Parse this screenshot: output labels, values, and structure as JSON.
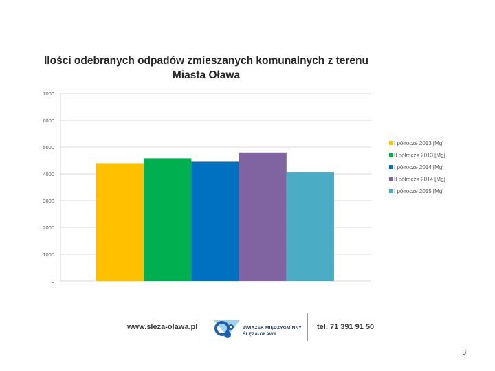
{
  "chart_data": {
    "type": "bar",
    "title": "Ilości odebranych odpadów zmieszanych komunalnych z terenu Miasta Oława",
    "title_line1": "Ilości odebranych odpadów zmieszanych komunalnych z terenu",
    "title_line2": "Miasta Oława",
    "ylim": [
      0,
      7000
    ],
    "yticks": [
      0,
      1000,
      2000,
      3000,
      4000,
      5000,
      6000,
      7000
    ],
    "grid": true,
    "legend_position": "right",
    "series": [
      {
        "name": "I półrocze 2013 [Mg]",
        "value": 4400,
        "color": "#FFC000"
      },
      {
        "name": "II półrocze 2013 [Mg]",
        "value": 4580,
        "color": "#00B050"
      },
      {
        "name": "I półrocze 2014 [Mg]",
        "value": 4450,
        "color": "#0070C0"
      },
      {
        "name": "II półrocze 2014 [Mg]",
        "value": 4800,
        "color": "#8064A2"
      },
      {
        "name": "I półrocze 2015 [Mg]",
        "value": 4060,
        "color": "#4BACC6"
      }
    ]
  },
  "footer": {
    "website": "www.sleza-olawa.pl",
    "org_line1": "ZWIĄZEK MIĘDZYGMINNY",
    "org_line2": "ŚLĘZA-OŁAWA",
    "phone": "tel. 71 391 91 50"
  },
  "page_number": "3"
}
